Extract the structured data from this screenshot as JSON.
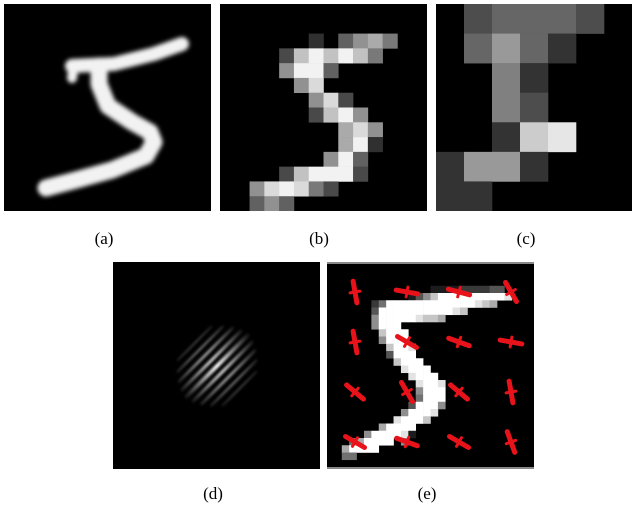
{
  "figure": {
    "panels": [
      {
        "id": "a",
        "caption": "(a)",
        "content": "digit-5-original-28x28"
      },
      {
        "id": "b",
        "caption": "(b)",
        "content": "digit-5-downsampled-14x14"
      },
      {
        "id": "c",
        "caption": "(c)",
        "content": "digit-5-downsampled-7x7"
      },
      {
        "id": "d",
        "caption": "(d)",
        "content": "gabor-filter"
      },
      {
        "id": "e",
        "caption": "(e)",
        "content": "digit-5-with-red-orientation-markers"
      }
    ],
    "colors": {
      "background": "#000000",
      "foreground": "#ffffff",
      "marker": "#e8121a"
    }
  }
}
